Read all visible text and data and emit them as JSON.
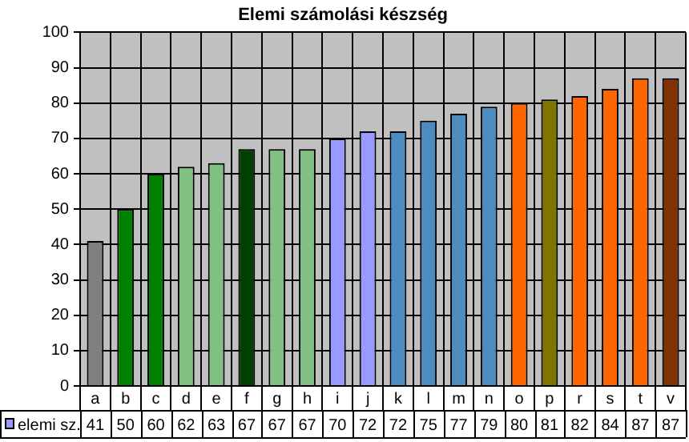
{
  "chart_data": {
    "type": "bar",
    "title": "Elemi számolási készség",
    "categories": [
      "a",
      "b",
      "c",
      "d",
      "e",
      "f",
      "g",
      "h",
      "i",
      "j",
      "k",
      "l",
      "m",
      "n",
      "o",
      "p",
      "r",
      "s",
      "t",
      "v"
    ],
    "series": [
      {
        "name": "elemi sz.",
        "color": "#9999ff",
        "colors": [
          "#808080",
          "#008000",
          "#008000",
          "#80c080",
          "#80c080",
          "#004000",
          "#80c080",
          "#80c080",
          "#9999ff",
          "#9999ff",
          "#4c8cc0",
          "#4c8cc0",
          "#4c8cc0",
          "#4c8cc0",
          "#ff6600",
          "#807300",
          "#ff6600",
          "#ff6600",
          "#ff6600",
          "#803300"
        ],
        "values": [
          41,
          50,
          60,
          62,
          63,
          67,
          67,
          67,
          70,
          72,
          72,
          75,
          77,
          79,
          80,
          81,
          82,
          84,
          87,
          87
        ]
      }
    ],
    "ylim": [
      0,
      100
    ],
    "yticks": [
      0,
      10,
      20,
      30,
      40,
      50,
      60,
      70,
      80,
      90,
      100
    ],
    "grid": true,
    "legend": "bottom",
    "data_labels": true
  }
}
